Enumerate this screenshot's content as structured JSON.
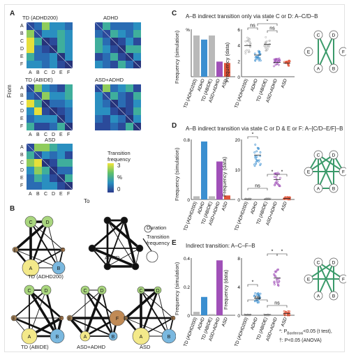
{
  "panels": {
    "A": {
      "label": "A",
      "titles": [
        "TD (ADHD200)",
        "ADHD",
        "TD (ABIDE)",
        "ASD+ADHD",
        "ASD"
      ],
      "row_states": [
        "A",
        "B",
        "C",
        "D",
        "E",
        "F"
      ],
      "col_states": [
        "A",
        "B",
        "C",
        "D",
        "E",
        "F"
      ],
      "from_label": "From",
      "to_label": "To",
      "colorbar_title": "Transition frequency",
      "colorbar_ticks": [
        "3",
        "%",
        "0"
      ],
      "colors": {
        "low": "#2b3a8c",
        "mid": "#2a8fc0",
        "high": "#f1e43a"
      }
    },
    "B": {
      "label": "B",
      "nodes": [
        "A",
        "B",
        "C",
        "D",
        "E",
        "F"
      ],
      "graph_titles": [
        "TD (ADHD200)",
        "ADHD",
        "TD (ABIDE)",
        "ASD+ADHD",
        "ASD"
      ],
      "legend_duration": "Duration",
      "legend_transition": "Transition frequency",
      "node_colors": {
        "A": "#f3e98a",
        "B": "#7ab8df",
        "C": "#a9d67e",
        "D": "#a9d67e",
        "E": "#b08a5c",
        "F": "#c08a55"
      }
    },
    "C": {
      "label": "C",
      "title": "A–B indirect transition only via state C or D: A–C/D–B",
      "ylabel_sim": "Frequency (simulation)",
      "ylabel_data": "Frequency (data)",
      "ytick_sim": "%",
      "ticks_data": [
        "6",
        "4",
        "2",
        "0"
      ],
      "groups": [
        "TD (ADHD200)",
        "ADHD",
        "TD (ABIDE)",
        "ASD+ADHD",
        "ASD"
      ],
      "ns_labels": [
        "ns",
        "ns"
      ],
      "star": "*"
    },
    "D": {
      "label": "D",
      "title": "A–B indirect transition via state C or D & E or F: A–[C/D–E/F]–B",
      "ylabel_sim": "Frequency (simulation)",
      "ylabel_data": "Frequency (data)",
      "ticks_sim": [
        "0.8",
        "0"
      ],
      "ticks_data": [
        "20",
        "10",
        "0"
      ],
      "groups": [
        "TD (ADHD200)",
        "ADHD",
        "TD (ABIDE)",
        "ASD+ADHD",
        "ASD"
      ],
      "ns_labels": [
        "ns",
        "ns"
      ],
      "star": "*"
    },
    "E": {
      "label": "E",
      "title": "Indirect transition: A–C–F–B",
      "ylabel_sim": "Frequency (simulation)",
      "ylabel_data": "Frequency (data)",
      "ticks_sim": [
        "0.4",
        "0.2",
        "0"
      ],
      "ticks_data": [
        "8",
        "4",
        "0"
      ],
      "groups": [
        "TD (ADHD200)",
        "ADHD",
        "TD (ABIDE)",
        "ASD+ADHD",
        "ASD"
      ],
      "ns_labels": [
        "ns",
        "ns",
        "ns"
      ],
      "star": "*",
      "legend_star": "*: P",
      "legend_star_sub": "Bonferroni",
      "legend_star_tail": "<0.05 (t test),",
      "legend_dagger": "†: P<0.05 (ANOVA)"
    }
  },
  "chart_data": [
    {
      "type": "bar",
      "panel": "C",
      "categories": [
        "TD (ADHD200)",
        "ADHD",
        "TD (ABIDE)",
        "ASD+ADHD",
        "ASD"
      ],
      "values": [
        3.0,
        2.7,
        3.0,
        1.1,
        1.0
      ],
      "colors": [
        "#b9b9b9",
        "#3b8fd0",
        "#b9b9b9",
        "#a050b8",
        "#e0553a"
      ]
    },
    {
      "type": "bar",
      "panel": "D",
      "categories": [
        "TD (ADHD200)",
        "ADHD",
        "TD (ABIDE)",
        "ASD+ADHD",
        "ASD"
      ],
      "values": [
        0.08,
        1.45,
        0.08,
        0.95,
        0.1
      ],
      "ylim": [
        0,
        1.5
      ],
      "colors": [
        "#b9b9b9",
        "#3b8fd0",
        "#b9b9b9",
        "#a050b8",
        "#e0553a"
      ]
    },
    {
      "type": "bar",
      "panel": "E",
      "categories": [
        "TD (ADHD200)",
        "ADHD",
        "TD (ABIDE)",
        "ASD+ADHD",
        "ASD"
      ],
      "values": [
        0.03,
        0.16,
        0.01,
        0.48,
        0.0
      ],
      "ylim": [
        0,
        0.5
      ],
      "colors": [
        "#b9b9b9",
        "#3b8fd0",
        "#b9b9b9",
        "#a050b8",
        "#e0553a"
      ]
    },
    {
      "type": "scatter",
      "panel": "C-data",
      "categories": [
        "TD (ADHD200)",
        "ADHD",
        "TD (ABIDE)",
        "ASD+ADHD",
        "ASD"
      ],
      "means": [
        4.6,
        3.2,
        4.8,
        2.1,
        2.0
      ],
      "spread": [
        1.2,
        1.0,
        1.1,
        0.6,
        0.6
      ],
      "ylim": [
        0,
        7
      ]
    },
    {
      "type": "scatter",
      "panel": "D-data",
      "categories": [
        "TD (ADHD200)",
        "ADHD",
        "TD (ABIDE)",
        "ASD+ADHD",
        "ASD"
      ],
      "means": [
        0.1,
        20,
        0.2,
        9,
        0.5
      ],
      "spread": [
        0.3,
        5,
        0.3,
        3,
        0.6
      ],
      "ylim": [
        0,
        27
      ]
    },
    {
      "type": "scatter",
      "panel": "E-data",
      "categories": [
        "TD (ADHD200)",
        "ADHD",
        "TD (ABIDE)",
        "ASD+ADHD",
        "ASD"
      ],
      "means": [
        0.05,
        3.0,
        0.05,
        6.5,
        0.3
      ],
      "spread": [
        0.1,
        1.0,
        0.1,
        1.6,
        0.4
      ],
      "ylim": [
        0,
        10
      ]
    }
  ]
}
